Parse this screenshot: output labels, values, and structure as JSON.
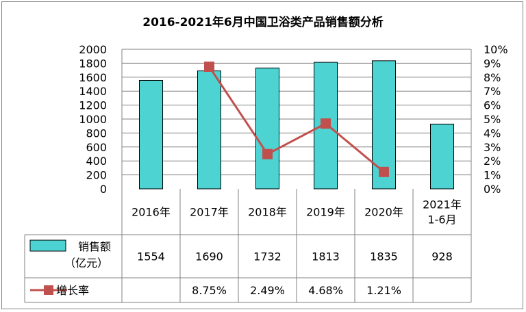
{
  "chart_data": {
    "type": "bar",
    "title": "2016-2021年6月中国卫浴类产品销售额分析",
    "categories": [
      "2016年",
      "2017年",
      "2018年",
      "2019年",
      "2020年",
      "2021年 1-6月"
    ],
    "category_lines": [
      [
        "2016年"
      ],
      [
        "2017年"
      ],
      [
        "2018年"
      ],
      [
        "2019年"
      ],
      [
        "2020年"
      ],
      [
        "2021年",
        "1-6月"
      ]
    ],
    "y_left": {
      "min": 0,
      "max": 2000,
      "step": 200,
      "ticks": [
        "0",
        "200",
        "400",
        "600",
        "800",
        "1000",
        "1200",
        "1400",
        "1600",
        "1800",
        "2000"
      ]
    },
    "y_right": {
      "min": 0,
      "max": 10,
      "step": 1,
      "ticks": [
        "0%",
        "1%",
        "2%",
        "3%",
        "4%",
        "5%",
        "6%",
        "7%",
        "8%",
        "9%",
        "10%"
      ]
    },
    "grid": true,
    "legend": "data-table",
    "series": [
      {
        "name": "销售额（亿元）",
        "legend_lines": [
          "销售额",
          "（亿元）"
        ],
        "type": "bar",
        "axis": "left",
        "color": "#4ed3d3",
        "values": [
          1554,
          1690,
          1732,
          1813,
          1835,
          928
        ],
        "labels": [
          "1554",
          "1690",
          "1732",
          "1813",
          "1835",
          "928"
        ]
      },
      {
        "name": "增长率",
        "type": "line",
        "axis": "right",
        "color": "#c0504d",
        "values": [
          null,
          8.75,
          2.49,
          4.68,
          1.21,
          null
        ],
        "labels": [
          "",
          "8.75%",
          "2.49%",
          "4.68%",
          "1.21%",
          ""
        ]
      }
    ]
  }
}
